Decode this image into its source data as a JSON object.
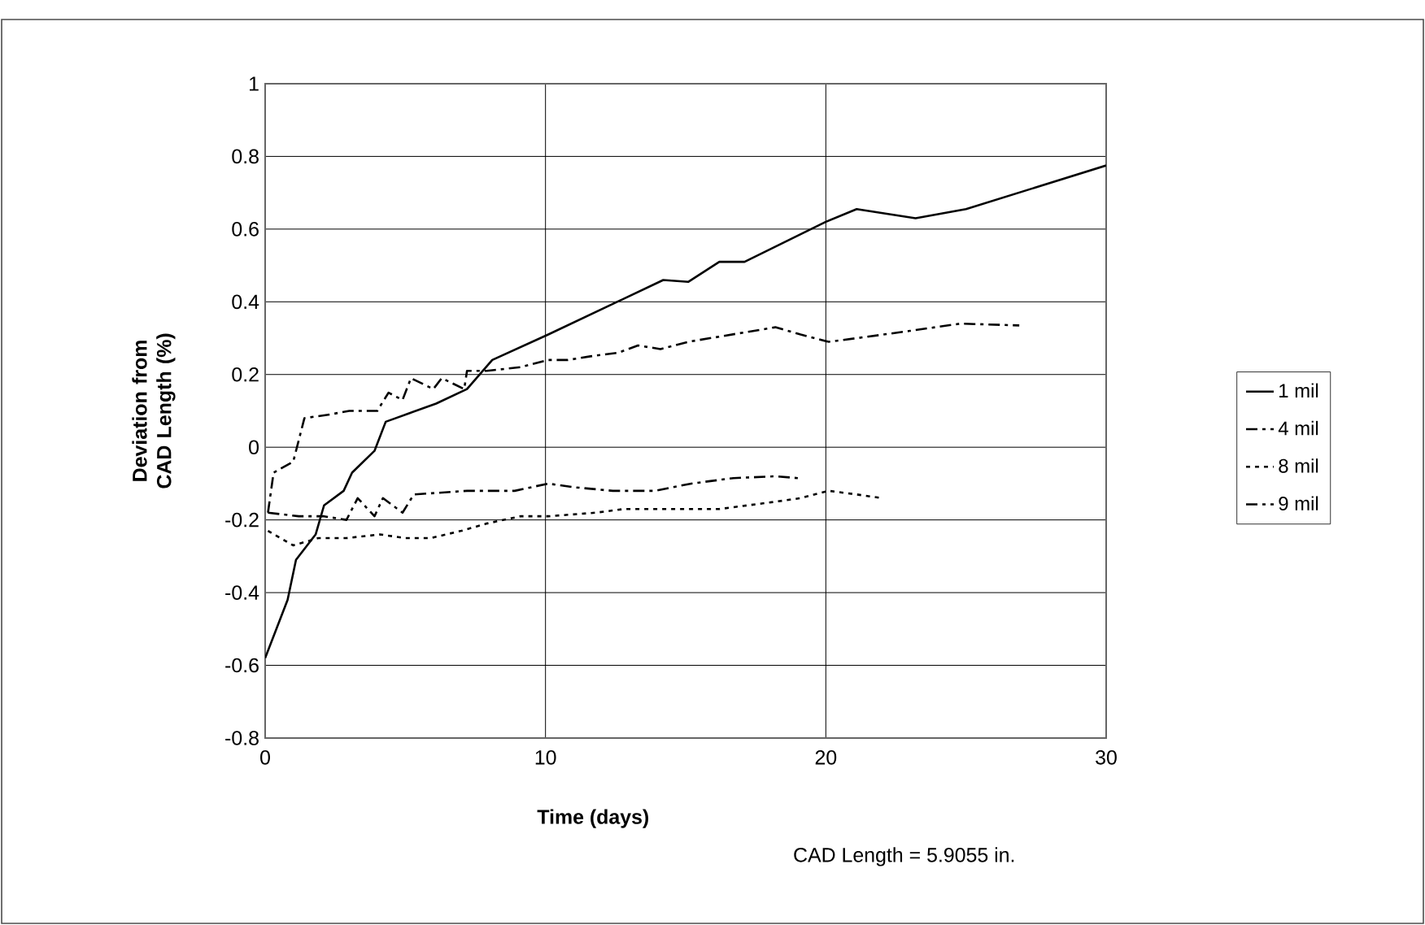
{
  "chart_data": {
    "type": "line",
    "xlabel": "Time (days)",
    "ylabel": "Deviation from CAD Length (%)",
    "annotations": [
      "CAD Length = 5.9055 in."
    ],
    "xlim": [
      0,
      30
    ],
    "xticks": [
      0,
      10,
      20,
      30
    ],
    "ylim": [
      -0.8,
      1
    ],
    "yticks": [
      -0.8,
      -0.6,
      -0.4,
      -0.2,
      0,
      0.2,
      0.4,
      0.6,
      0.8,
      1
    ],
    "grid": true,
    "legend": "right",
    "marker": "none",
    "series": [
      {
        "name": "1 mil",
        "color": "#000000",
        "line_style": "solid",
        "x": [
          0,
          0.8,
          1.1,
          1.8,
          2.1,
          2.8,
          3.1,
          3.9,
          4.3,
          6.1,
          7.2,
          8.1,
          10.1,
          14.2,
          15.1,
          16.2,
          17.1,
          20,
          21.1,
          23.2,
          25,
          30
        ],
        "values": [
          -0.58,
          -0.42,
          -0.31,
          -0.24,
          -0.16,
          -0.12,
          -0.07,
          -0.01,
          0.07,
          0.12,
          0.16,
          0.24,
          0.31,
          0.46,
          0.455,
          0.51,
          0.51,
          0.62,
          0.655,
          0.63,
          0.655,
          0.775
        ]
      },
      {
        "name": "4 mil",
        "color": "#000000",
        "line_style": "dashed",
        "x": [
          0.1,
          0.3,
          1.0,
          1.4,
          2.3,
          3.0,
          4.0,
          4.4,
          4.9,
          5.2,
          6.0,
          6.3,
          7.1,
          7.2,
          7.9,
          9.1,
          10.1,
          10.8,
          11.6,
          12.6,
          13.3,
          14.1,
          15.1,
          18.2,
          19.1,
          20.1,
          21.1,
          23.0,
          24.8,
          26.9
        ],
        "values": [
          -0.18,
          -0.07,
          -0.04,
          0.08,
          0.09,
          0.1,
          0.1,
          0.15,
          0.13,
          0.19,
          0.16,
          0.19,
          0.16,
          0.21,
          0.21,
          0.22,
          0.24,
          0.24,
          0.25,
          0.26,
          0.28,
          0.27,
          0.29,
          0.33,
          0.31,
          0.29,
          0.3,
          0.32,
          0.34,
          0.335
        ]
      },
      {
        "name": "8 mil",
        "color": "#000000",
        "line_style": "dotted",
        "x": [
          0.1,
          1.0,
          1.9,
          2.9,
          4.1,
          5.0,
          5.9,
          7.0,
          7.9,
          9.1,
          10.1,
          11.8,
          12.8,
          14.1,
          15.3,
          16.2,
          17.2,
          18.2,
          19.1,
          20.1,
          21.1,
          22.0
        ],
        "values": [
          -0.23,
          -0.27,
          -0.25,
          -0.25,
          -0.24,
          -0.25,
          -0.25,
          -0.23,
          -0.21,
          -0.19,
          -0.19,
          -0.18,
          -0.17,
          -0.17,
          -0.17,
          -0.17,
          -0.16,
          -0.15,
          -0.14,
          -0.12,
          -0.13,
          -0.14
        ]
      },
      {
        "name": "9 mil",
        "color": "#000000",
        "line_style": "dashed",
        "x": [
          0.1,
          1.2,
          2.1,
          2.9,
          3.3,
          3.9,
          4.2,
          4.9,
          5.3,
          7.2,
          8.9,
          10.1,
          11.0,
          12.4,
          13.9,
          15.2,
          16.7,
          18.2,
          19.0
        ],
        "values": [
          -0.18,
          -0.19,
          -0.19,
          -0.2,
          -0.14,
          -0.19,
          -0.14,
          -0.18,
          -0.13,
          -0.12,
          -0.12,
          -0.1,
          -0.11,
          -0.12,
          -0.12,
          -0.1,
          -0.085,
          -0.08,
          -0.085
        ]
      }
    ]
  }
}
